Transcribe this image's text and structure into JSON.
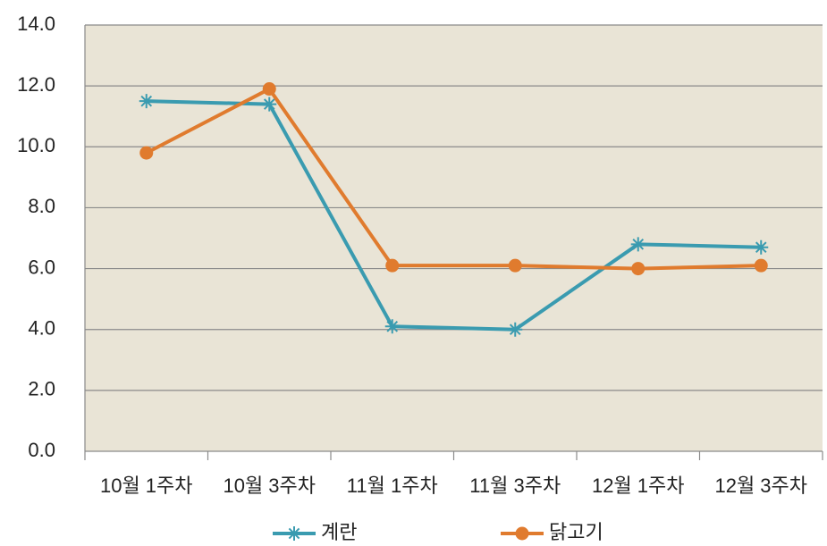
{
  "chart_data": {
    "type": "line",
    "categories": [
      "10월 1주차",
      "10월 3주차",
      "11월 1주차",
      "11월 3주차",
      "12월 1주차",
      "12월 3주차"
    ],
    "series": [
      {
        "name": "계란",
        "color": "#3a9bb0",
        "marker": "asterisk",
        "values": [
          11.5,
          11.4,
          4.1,
          4.0,
          6.8,
          6.7
        ]
      },
      {
        "name": "닭고기",
        "color": "#e07b2e",
        "marker": "circle",
        "values": [
          9.8,
          11.9,
          6.1,
          6.1,
          6.0,
          6.1
        ]
      }
    ],
    "ylim": [
      0,
      14
    ],
    "yticks": [
      {
        "value": 0,
        "label": "0.0"
      },
      {
        "value": 2,
        "label": "2.0"
      },
      {
        "value": 4,
        "label": "4.0"
      },
      {
        "value": 6,
        "label": "6.0"
      },
      {
        "value": 8,
        "label": "8.0"
      },
      {
        "value": 10,
        "label": "10.0"
      },
      {
        "value": 12,
        "label": "12.0"
      },
      {
        "value": 14,
        "label": "14.0"
      }
    ],
    "grid": true,
    "legend": "bottom"
  }
}
